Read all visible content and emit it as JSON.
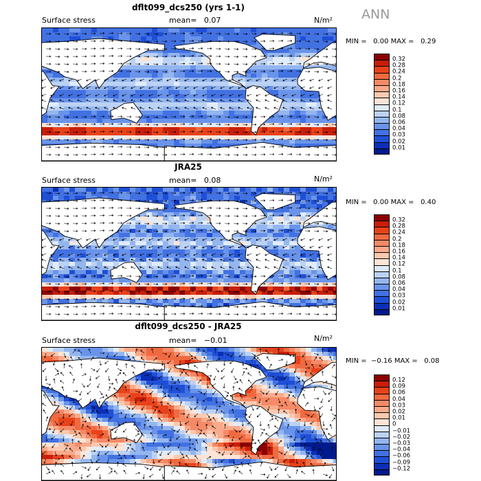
{
  "season": "ANN",
  "panels": [
    {
      "title": "dflt099_dcs250 (yrs 1-1)",
      "field": "Surface stress",
      "mean_label": "mean=",
      "mean_value": "0.07",
      "units": "N/m²",
      "min_label": "MIN =",
      "min_value": "0.00",
      "max_label": "MAX =",
      "max_value": "0.29",
      "colorbar_levels": [
        "0.32",
        "0.28",
        "0.24",
        "0.2",
        "0.18",
        "0.16",
        "0.14",
        "0.12",
        "0.1",
        "0.08",
        "0.06",
        "0.04",
        "0.03",
        "0.02",
        "0.01"
      ],
      "colorbar_colors": [
        "#8b0000",
        "#c81e0a",
        "#e8421a",
        "#f06a40",
        "#f58a66",
        "#f9aa8a",
        "#fbc9b0",
        "#fde4d6",
        "#e0ecfb",
        "#bcd2f5",
        "#94b6ef",
        "#6a94ea",
        "#4271e2",
        "#1f4fd6",
        "#0b2fb8",
        "#001a8c"
      ],
      "fill_field": "model"
    },
    {
      "title": "JRA25",
      "field": "Surface stress",
      "mean_label": "mean=",
      "mean_value": "0.08",
      "units": "N/m²",
      "min_label": "MIN =",
      "min_value": "0.00",
      "max_label": "MAX =",
      "max_value": "0.40",
      "colorbar_levels": [
        "0.32",
        "0.28",
        "0.24",
        "0.2",
        "0.18",
        "0.16",
        "0.14",
        "0.12",
        "0.1",
        "0.08",
        "0.06",
        "0.04",
        "0.03",
        "0.02",
        "0.01"
      ],
      "colorbar_colors": [
        "#8b0000",
        "#c81e0a",
        "#e8421a",
        "#f06a40",
        "#f58a66",
        "#f9aa8a",
        "#fbc9b0",
        "#fde4d6",
        "#e0ecfb",
        "#bcd2f5",
        "#94b6ef",
        "#6a94ea",
        "#4271e2",
        "#1f4fd6",
        "#0b2fb8",
        "#001a8c"
      ],
      "fill_field": "obs"
    },
    {
      "title": "dflt099_dcs250 - JRA25",
      "field": "Surface stress",
      "mean_label": "mean=",
      "mean_value": "−0.01",
      "units": "N/m²",
      "min_label": "MIN =",
      "min_value": "−0.16",
      "max_label": "MAX =",
      "max_value": "0.08",
      "colorbar_levels": [
        "0.12",
        "0.09",
        "0.06",
        "0.04",
        "0.03",
        "0.02",
        "0.01",
        "0",
        "−0.01",
        "−0.02",
        "−0.03",
        "−0.04",
        "−0.06",
        "−0.09",
        "−0.12"
      ],
      "colorbar_colors": [
        "#8b0000",
        "#c81e0a",
        "#e8421a",
        "#f06a40",
        "#f58a66",
        "#f9aa8a",
        "#fbc9b0",
        "#fde4d6",
        "#e0ecfb",
        "#bcd2f5",
        "#94b6ef",
        "#6a94ea",
        "#4271e2",
        "#1f4fd6",
        "#0b2fb8",
        "#001a8c"
      ],
      "fill_field": "diff"
    }
  ]
}
